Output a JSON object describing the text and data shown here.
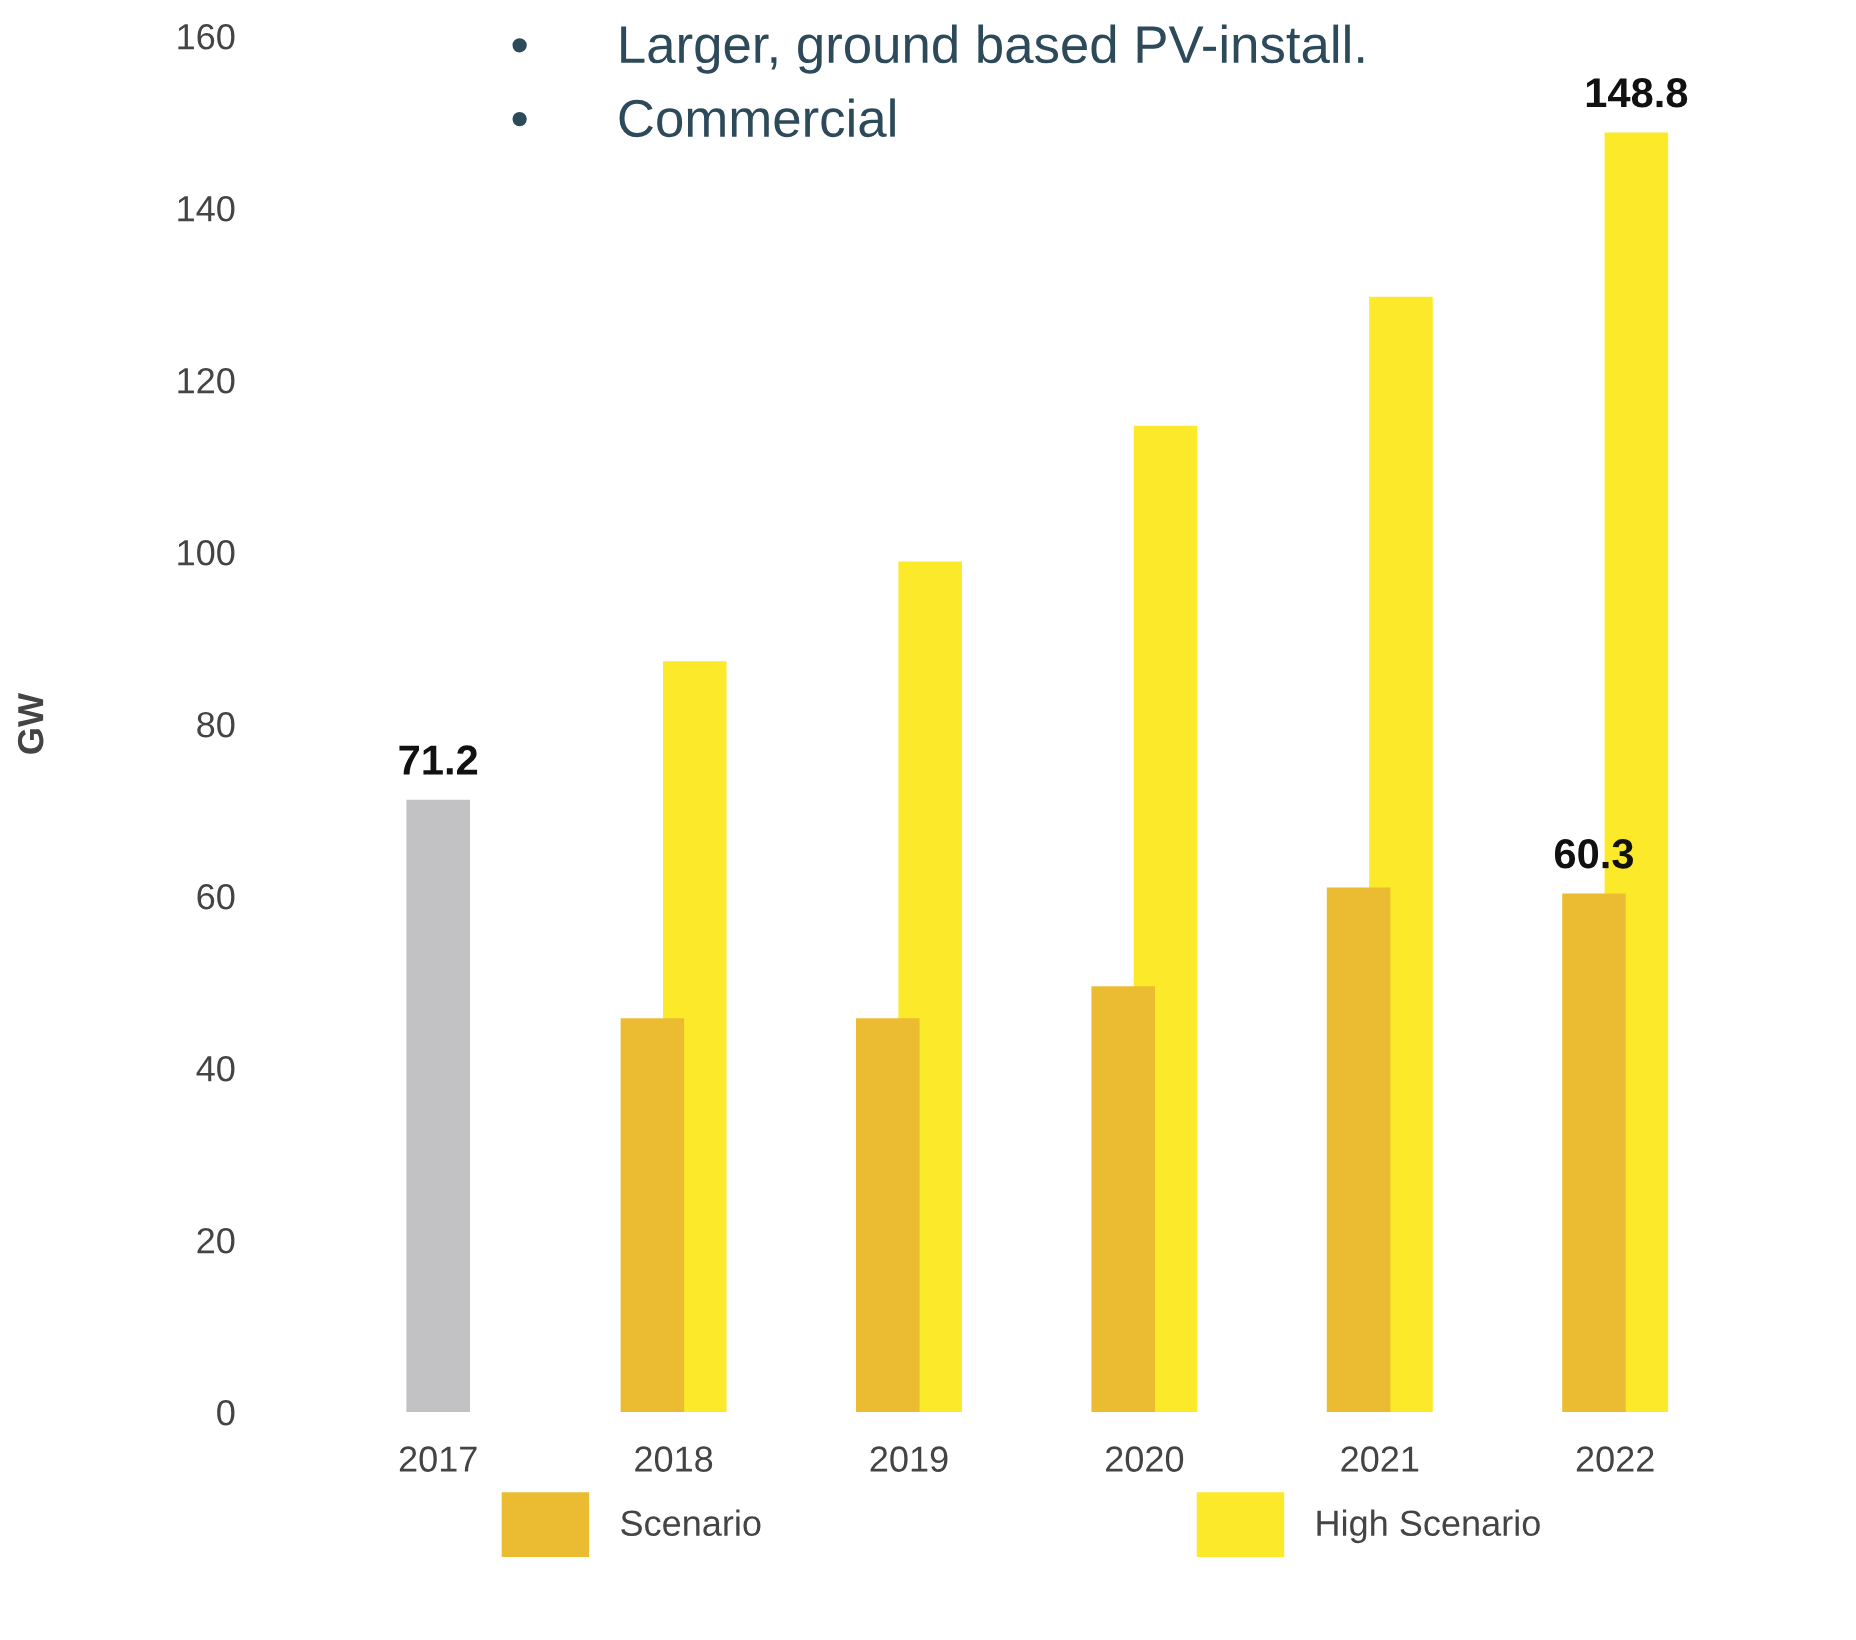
{
  "chart_data": {
    "type": "bar",
    "ylabel": "GW",
    "categories": [
      "2017",
      "2018",
      "2019",
      "2020",
      "2021",
      "2022"
    ],
    "series": [
      {
        "color": "#c2c2c4",
        "values": [
          71.2,
          null,
          null,
          null,
          null,
          null
        ],
        "value_labels": [
          "71.2",
          null,
          null,
          null,
          null,
          null
        ]
      },
      {
        "name": "High Scenario",
        "color": "#fbe92a",
        "values": [
          null,
          87.3,
          98.9,
          114.7,
          129.7,
          148.8
        ],
        "value_labels": [
          null,
          null,
          null,
          null,
          null,
          "148.8"
        ]
      },
      {
        "name": "Scenario",
        "color": "#ebbc32",
        "values": [
          null,
          45.8,
          45.8,
          49.5,
          61.0,
          60.3
        ],
        "value_labels": [
          null,
          null,
          null,
          null,
          null,
          "60.3"
        ]
      }
    ],
    "ylim": [
      0,
      160
    ],
    "yticks": [
      0,
      20,
      40,
      60,
      80,
      100,
      120,
      140,
      160
    ],
    "grid": false,
    "legend": "bottom",
    "annotations": [
      "•      Larger, ground based PV-install.",
      "•      Commercial"
    ]
  }
}
